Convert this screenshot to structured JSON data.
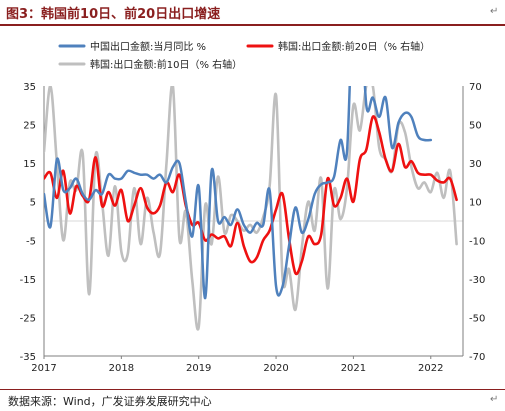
{
  "figure": {
    "title": "图3：韩国前10日、前20日出口增速",
    "source": "数据来源：Wind，广发证券发展研究中心"
  },
  "chart_data": {
    "type": "line",
    "x_ticks": [
      "2017",
      "2018",
      "2019",
      "2020",
      "2021",
      "2022"
    ],
    "x_range": [
      "2017-01",
      "2022-06"
    ],
    "left_axis": {
      "ylim": [
        -35,
        35
      ],
      "ticks": [
        "35",
        "25",
        "15",
        "5",
        "-5",
        "-15",
        "-25",
        "-35"
      ]
    },
    "right_axis": {
      "ylim": [
        -70,
        70
      ],
      "ticks": [
        "70",
        "50",
        "30",
        "10",
        "-10",
        "-30",
        "-50",
        "-70"
      ]
    },
    "legend_position": "top-left",
    "grid": false,
    "series": [
      {
        "name": "中国出口金额:当月同比 %",
        "axis": "left",
        "color": "#4f81bd",
        "points": [
          [
            "2017-01",
            7.0
          ],
          [
            "2017-02",
            -1.5
          ],
          [
            "2017-03",
            16.0
          ],
          [
            "2017-04",
            8.0
          ],
          [
            "2017-05",
            8.5
          ],
          [
            "2017-06",
            11.0
          ],
          [
            "2017-07",
            7.0
          ],
          [
            "2017-08",
            5.5
          ],
          [
            "2017-09",
            8.0
          ],
          [
            "2017-10",
            7.0
          ],
          [
            "2017-11",
            12.0
          ],
          [
            "2017-12",
            11.0
          ],
          [
            "2018-01",
            11.0
          ],
          [
            "2018-02",
            13.0
          ],
          [
            "2018-03",
            12.5
          ],
          [
            "2018-04",
            12.0
          ],
          [
            "2018-05",
            12.0
          ],
          [
            "2018-06",
            11.0
          ],
          [
            "2018-07",
            12.0
          ],
          [
            "2018-08",
            10.0
          ],
          [
            "2018-09",
            14.0
          ],
          [
            "2018-10",
            15.0
          ],
          [
            "2018-11",
            5.0
          ],
          [
            "2018-12",
            -4.0
          ],
          [
            "2019-01",
            9.0
          ],
          [
            "2019-02",
            -20.0
          ],
          [
            "2019-03",
            13.0
          ],
          [
            "2019-04",
            0.0
          ],
          [
            "2019-05",
            1.0
          ],
          [
            "2019-06",
            -1.0
          ],
          [
            "2019-07",
            3.0
          ],
          [
            "2019-08",
            -1.0
          ],
          [
            "2019-09",
            -3.0
          ],
          [
            "2019-10",
            -0.5
          ],
          [
            "2019-11",
            -1.0
          ],
          [
            "2019-12",
            8.0
          ],
          [
            "2020-01",
            -17.0
          ],
          [
            "2020-02",
            -17.0
          ],
          [
            "2020-03",
            -6.5
          ],
          [
            "2020-04",
            3.5
          ],
          [
            "2020-05",
            -3.0
          ],
          [
            "2020-06",
            0.5
          ],
          [
            "2020-07",
            7.0
          ],
          [
            "2020-08",
            9.5
          ],
          [
            "2020-09",
            10.0
          ],
          [
            "2020-10",
            11.5
          ],
          [
            "2020-11",
            21.0
          ],
          [
            "2020-12",
            18.0
          ],
          [
            "2021-01",
            60.0
          ],
          [
            "2021-02",
            60.0
          ],
          [
            "2021-03",
            30.0
          ],
          [
            "2021-04",
            32.0
          ],
          [
            "2021-05",
            27.0
          ],
          [
            "2021-06",
            32.0
          ],
          [
            "2021-07",
            19.0
          ],
          [
            "2021-08",
            25.5
          ],
          [
            "2021-09",
            28.0
          ],
          [
            "2021-10",
            27.0
          ],
          [
            "2021-11",
            22.0
          ],
          [
            "2021-12",
            21.0
          ],
          [
            "2022-01",
            21.0
          ]
        ]
      },
      {
        "name": "韩国:出口金额:前20日（% 右轴）",
        "axis": "right",
        "color": "#ee1111",
        "points": [
          [
            "2017-01",
            22.0
          ],
          [
            "2017-02",
            25.0
          ],
          [
            "2017-03",
            12.0
          ],
          [
            "2017-04",
            26.0
          ],
          [
            "2017-05",
            4.0
          ],
          [
            "2017-06",
            18.0
          ],
          [
            "2017-07",
            13.0
          ],
          [
            "2017-08",
            11.0
          ],
          [
            "2017-09",
            33.0
          ],
          [
            "2017-10",
            8.0
          ],
          [
            "2017-11",
            15.0
          ],
          [
            "2017-12",
            8.0
          ],
          [
            "2018-01",
            16.0
          ],
          [
            "2018-02",
            0.0
          ],
          [
            "2018-03",
            8.0
          ],
          [
            "2018-04",
            17.0
          ],
          [
            "2018-05",
            7.0
          ],
          [
            "2018-06",
            4.0
          ],
          [
            "2018-07",
            8.0
          ],
          [
            "2018-08",
            20.0
          ],
          [
            "2018-09",
            15.0
          ],
          [
            "2018-10",
            24.0
          ],
          [
            "2018-11",
            8.0
          ],
          [
            "2018-12",
            -2.0
          ],
          [
            "2019-01",
            -1.0
          ],
          [
            "2019-02",
            -10.0
          ],
          [
            "2019-03",
            -7.0
          ],
          [
            "2019-04",
            -9.0
          ],
          [
            "2019-05",
            -8.0
          ],
          [
            "2019-06",
            -13.0
          ],
          [
            "2019-07",
            -1.0
          ],
          [
            "2019-08",
            -13.0
          ],
          [
            "2019-09",
            -21.0
          ],
          [
            "2019-10",
            -19.0
          ],
          [
            "2019-11",
            -10.0
          ],
          [
            "2019-12",
            -5.0
          ],
          [
            "2020-01",
            6.0
          ],
          [
            "2020-02",
            14.0
          ],
          [
            "2020-03",
            -9.0
          ],
          [
            "2020-04",
            -27.0
          ],
          [
            "2020-05",
            -21.0
          ],
          [
            "2020-06",
            -8.0
          ],
          [
            "2020-07",
            -12.0
          ],
          [
            "2020-08",
            -7.0
          ],
          [
            "2020-09",
            22.0
          ],
          [
            "2020-10",
            8.0
          ],
          [
            "2020-11",
            12.0
          ],
          [
            "2020-12",
            22.0
          ],
          [
            "2021-01",
            10.0
          ],
          [
            "2021-02",
            32.0
          ],
          [
            "2021-03",
            37.0
          ],
          [
            "2021-04",
            54.0
          ],
          [
            "2021-05",
            46.0
          ],
          [
            "2021-06",
            32.0
          ],
          [
            "2021-07",
            26.0
          ],
          [
            "2021-08",
            40.0
          ],
          [
            "2021-09",
            28.0
          ],
          [
            "2021-10",
            31.0
          ],
          [
            "2021-11",
            25.0
          ],
          [
            "2021-12",
            24.0
          ],
          [
            "2022-01",
            24.0
          ],
          [
            "2022-02",
            21.0
          ],
          [
            "2022-03",
            20.0
          ],
          [
            "2022-04",
            22.0
          ],
          [
            "2022-05",
            11.0
          ]
        ]
      },
      {
        "name": "韩国:出口金额:前10日（% 右轴）",
        "axis": "right",
        "color": "#bfbfbf",
        "points": [
          [
            "2017-01",
            36.0
          ],
          [
            "2017-02",
            70.0
          ],
          [
            "2017-03",
            30.0
          ],
          [
            "2017-04",
            -10.0
          ],
          [
            "2017-05",
            20.0
          ],
          [
            "2017-06",
            16.0
          ],
          [
            "2017-07",
            35.0
          ],
          [
            "2017-08",
            -38.0
          ],
          [
            "2017-09",
            34.0
          ],
          [
            "2017-10",
            10.0
          ],
          [
            "2017-11",
            -18.0
          ],
          [
            "2017-12",
            18.0
          ],
          [
            "2018-01",
            -16.0
          ],
          [
            "2018-02",
            -17.0
          ],
          [
            "2018-03",
            17.0
          ],
          [
            "2018-04",
            -12.0
          ],
          [
            "2018-05",
            12.0
          ],
          [
            "2018-06",
            -6.0
          ],
          [
            "2018-07",
            -17.0
          ],
          [
            "2018-08",
            30.0
          ],
          [
            "2018-09",
            70.0
          ],
          [
            "2018-10",
            -9.0
          ],
          [
            "2018-11",
            5.0
          ],
          [
            "2018-12",
            -31.0
          ],
          [
            "2019-01",
            -55.0
          ],
          [
            "2019-02",
            8.0
          ],
          [
            "2019-03",
            -12.0
          ],
          [
            "2019-04",
            23.0
          ],
          [
            "2019-05",
            -6.0
          ],
          [
            "2019-06",
            3.0
          ],
          [
            "2019-07",
            0.0
          ],
          [
            "2019-08",
            -5.0
          ],
          [
            "2019-09",
            -2.0
          ],
          [
            "2019-10",
            -6.0
          ],
          [
            "2019-11",
            2.0
          ],
          [
            "2019-12",
            18.0
          ],
          [
            "2020-01",
            65.0
          ],
          [
            "2020-02",
            -29.0
          ],
          [
            "2020-03",
            -25.0
          ],
          [
            "2020-04",
            -46.0
          ],
          [
            "2020-05",
            -14.0
          ],
          [
            "2020-06",
            10.0
          ],
          [
            "2020-07",
            -5.0
          ],
          [
            "2020-08",
            22.0
          ],
          [
            "2020-09",
            -35.0
          ],
          [
            "2020-10",
            16.0
          ],
          [
            "2020-11",
            1.0
          ],
          [
            "2020-12",
            17.0
          ],
          [
            "2021-01",
            60.0
          ],
          [
            "2021-02",
            47.0
          ],
          [
            "2021-03",
            70.0
          ],
          [
            "2021-04",
            70.0
          ],
          [
            "2021-05",
            38.0
          ],
          [
            "2021-06",
            32.0
          ],
          [
            "2021-07",
            26.0
          ],
          [
            "2021-08",
            50.0
          ],
          [
            "2021-09",
            46.0
          ],
          [
            "2021-10",
            28.0
          ],
          [
            "2021-11",
            17.0
          ],
          [
            "2021-12",
            20.0
          ],
          [
            "2022-01",
            15.0
          ],
          [
            "2022-02",
            25.0
          ],
          [
            "2022-03",
            12.0
          ],
          [
            "2022-04",
            26.0
          ],
          [
            "2022-05",
            -12.0
          ]
        ]
      }
    ]
  }
}
